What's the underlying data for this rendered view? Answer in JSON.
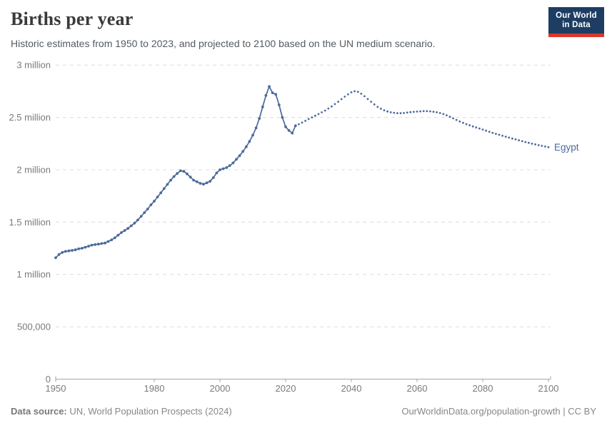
{
  "header": {
    "title": "Births per year",
    "subtitle": "Historic estimates from 1950 to 2023, and projected to 2100 based on the UN medium scenario.",
    "logo": {
      "line1": "Our World",
      "line2": "in Data"
    }
  },
  "chart_data": {
    "type": "line",
    "title": "Births per year",
    "entity": "Egypt",
    "unit": "births",
    "xlabel": "",
    "ylabel": "",
    "xlim": [
      1950,
      2100
    ],
    "ylim": [
      0,
      3000000
    ],
    "grid": true,
    "legend_position": "end-of-line",
    "end_label": "Egypt",
    "line_color": "#4c6a9c",
    "x_ticks": [
      1950,
      1980,
      2000,
      2020,
      2040,
      2060,
      2080,
      2100
    ],
    "y_ticks": [
      {
        "value": 0,
        "label": "0"
      },
      {
        "value": 500000,
        "label": "500,000"
      },
      {
        "value": 1000000,
        "label": "1 million"
      },
      {
        "value": 1500000,
        "label": "1.5 million"
      },
      {
        "value": 2000000,
        "label": "2 million"
      },
      {
        "value": 2500000,
        "label": "2.5 million"
      },
      {
        "value": 3000000,
        "label": "3 million"
      }
    ],
    "series": [
      {
        "name": "Egypt — historic estimates",
        "style": "solid",
        "start_year": 1950,
        "end_year": 2023,
        "values": [
          1160000,
          1190000,
          1210000,
          1220000,
          1225000,
          1230000,
          1235000,
          1245000,
          1250000,
          1260000,
          1270000,
          1280000,
          1285000,
          1290000,
          1295000,
          1300000,
          1315000,
          1330000,
          1350000,
          1375000,
          1400000,
          1420000,
          1440000,
          1465000,
          1490000,
          1520000,
          1555000,
          1590000,
          1625000,
          1665000,
          1700000,
          1740000,
          1780000,
          1820000,
          1860000,
          1900000,
          1935000,
          1965000,
          1990000,
          1985000,
          1960000,
          1930000,
          1900000,
          1885000,
          1870000,
          1862000,
          1875000,
          1890000,
          1925000,
          1970000,
          2000000,
          2010000,
          2020000,
          2040000,
          2065000,
          2100000,
          2135000,
          2175000,
          2220000,
          2270000,
          2330000,
          2400000,
          2490000,
          2600000,
          2710000,
          2795000,
          2735000,
          2720000,
          2620000,
          2500000,
          2410000,
          2375000,
          2350000,
          2420000
        ]
      },
      {
        "name": "Egypt — UN medium scenario projection",
        "style": "dotted",
        "start_year": 2023,
        "end_year": 2100,
        "values": [
          2420000,
          2435000,
          2450000,
          2467000,
          2484000,
          2500000,
          2516000,
          2532000,
          2548000,
          2565000,
          2585000,
          2605000,
          2627000,
          2650000,
          2674000,
          2698000,
          2720000,
          2740000,
          2750000,
          2744000,
          2726000,
          2702000,
          2676000,
          2650000,
          2624000,
          2600000,
          2583000,
          2568000,
          2557000,
          2549000,
          2544000,
          2541000,
          2540000,
          2542000,
          2546000,
          2550000,
          2553000,
          2556000,
          2558000,
          2560000,
          2560000,
          2558000,
          2554000,
          2549000,
          2542000,
          2532000,
          2520000,
          2506000,
          2491000,
          2476000,
          2461000,
          2448000,
          2436000,
          2425000,
          2414000,
          2404000,
          2394000,
          2384000,
          2373000,
          2362000,
          2352000,
          2343000,
          2334000,
          2325000,
          2316000,
          2307000,
          2298000,
          2290000,
          2281000,
          2273000,
          2265000,
          2257000,
          2249000,
          2242000,
          2235000,
          2228000,
          2222000,
          2216000
        ]
      }
    ]
  },
  "footer": {
    "source_label": "Data source:",
    "source_text": " UN, World Population Prospects (2024)",
    "credit": "OurWorldinData.org/population-growth | CC BY"
  },
  "colors": {
    "line": "#4c6a9c",
    "gridline": "#dcdcdc",
    "axis": "#a6a6a6",
    "tick_text": "#7a7a7a",
    "logo_bg": "#1d3d63",
    "logo_bar": "#dc362b"
  }
}
